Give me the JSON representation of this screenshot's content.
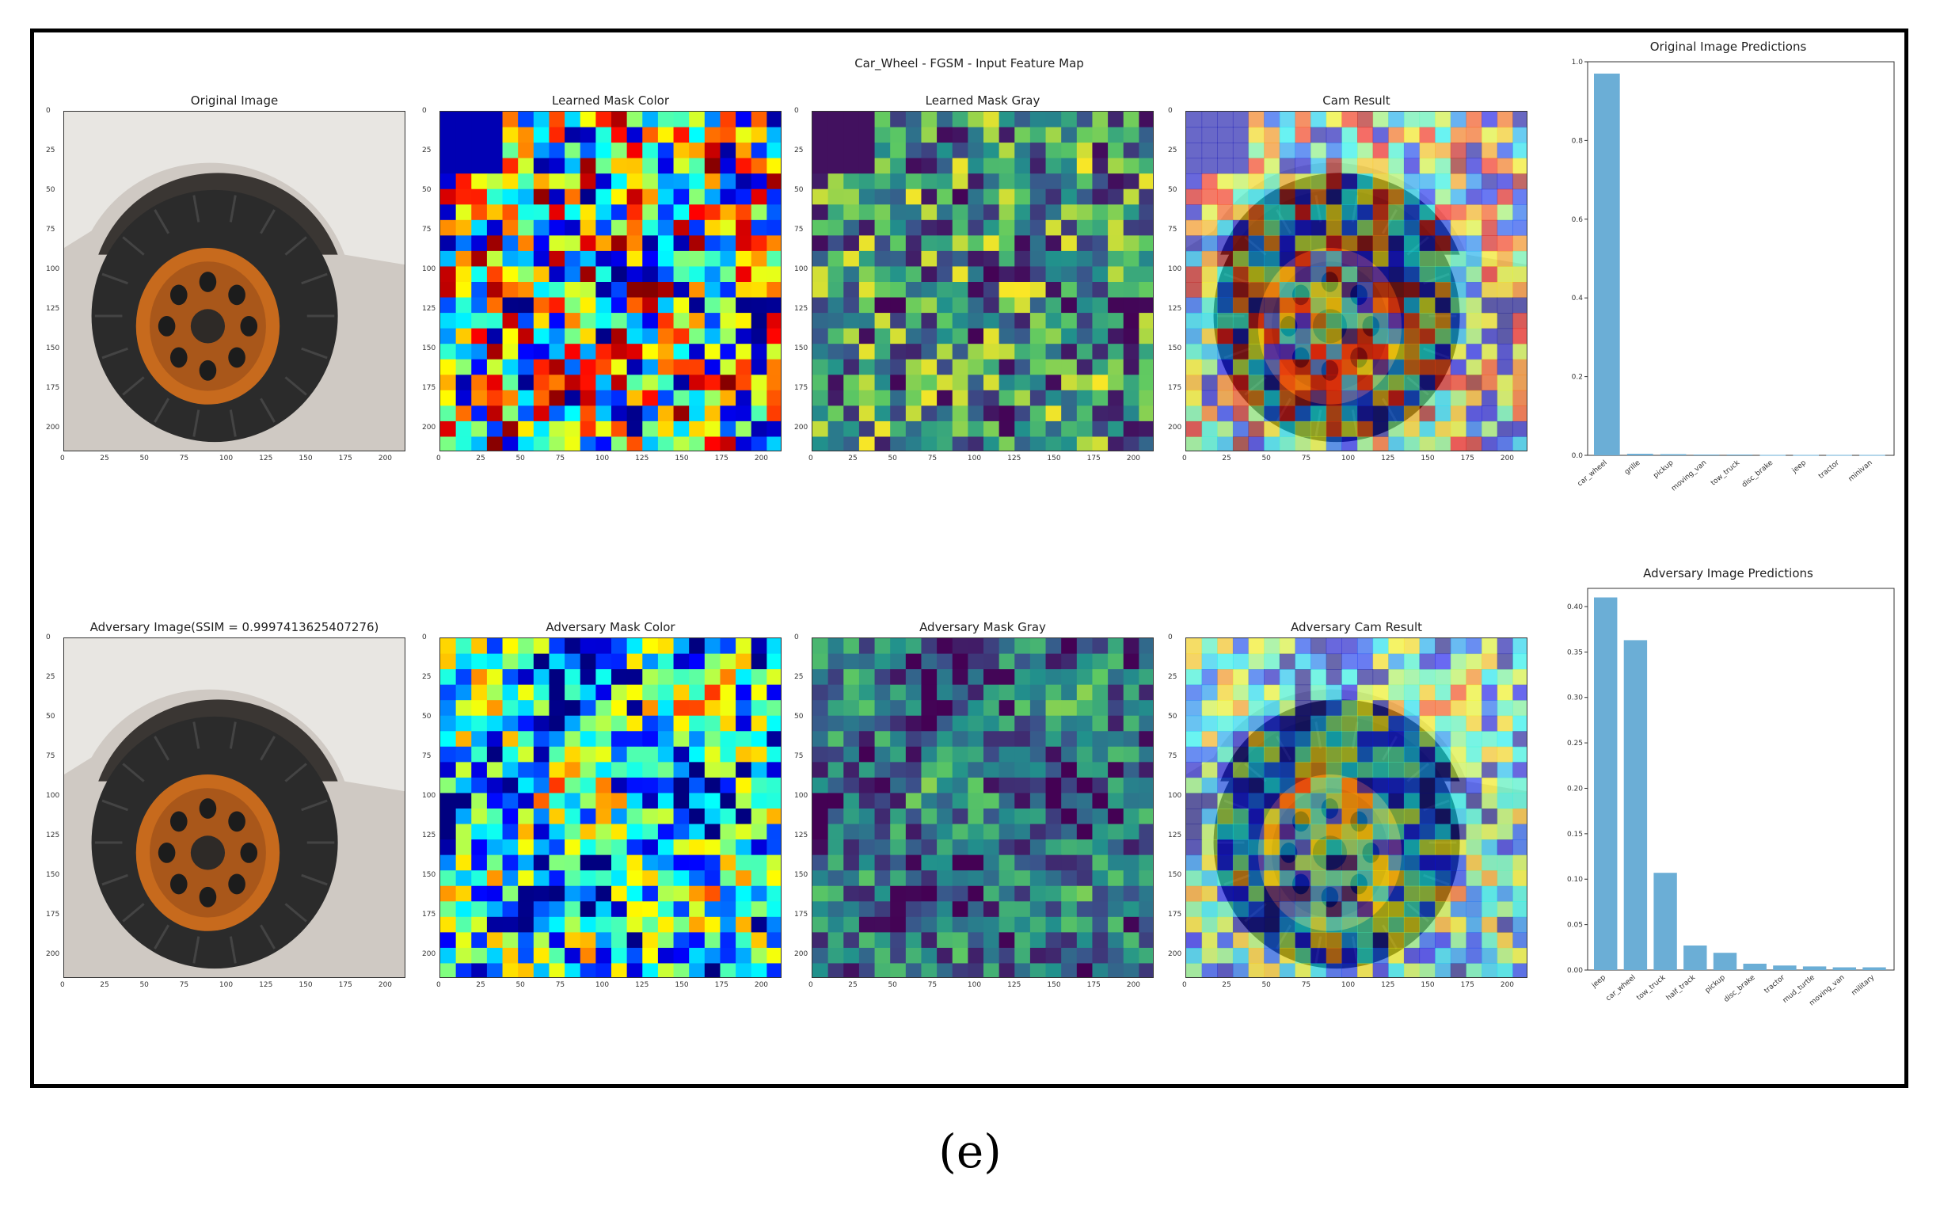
{
  "figure": {
    "suptitle": "Car_Wheel - FGSM - Input Feature Map",
    "caption": "(e)",
    "colors": {
      "bar": "#6baed6",
      "frame": "#000000",
      "tire": "#2b2b2b",
      "rim": "#c76a1d",
      "body": "#e8e6e2",
      "ground": "#cfc9c3"
    }
  },
  "rows": [
    {
      "panels": [
        {
          "title": "Original Image",
          "kind": "photo"
        },
        {
          "title": "Learned Mask Color",
          "kind": "jet",
          "seed": 11
        },
        {
          "title": "Learned Mask Gray",
          "kind": "viridis",
          "seed": 11
        },
        {
          "title": "Cam Result",
          "kind": "overlay",
          "seed": 11
        }
      ]
    },
    {
      "panels": [
        {
          "title": "Adversary Image(SSIM = 0.9997413625407276)",
          "kind": "photo"
        },
        {
          "title": "Adversary Mask Color",
          "kind": "jet",
          "seed": 29
        },
        {
          "title": "Adversary Mask Gray",
          "kind": "viridis",
          "seed": 29
        },
        {
          "title": "Adversary Cam Result",
          "kind": "overlay",
          "seed": 29
        }
      ]
    }
  ],
  "image_ticks": {
    "x": [
      "0",
      "25",
      "50",
      "75",
      "100",
      "125",
      "150",
      "175",
      "200"
    ],
    "y": [
      "0",
      "25",
      "50",
      "75",
      "100",
      "125",
      "150",
      "175",
      "200"
    ]
  },
  "chart_data": [
    {
      "type": "bar",
      "title": "Original Image Predictions",
      "categories": [
        "car_wheel",
        "grille",
        "pickup",
        "moving_van",
        "tow_truck",
        "disc_brake",
        "jeep",
        "tractor",
        "minivan"
      ],
      "values": [
        0.97,
        0.004,
        0.003,
        0.002,
        0.002,
        0.001,
        0.001,
        0.001,
        0.001
      ],
      "ylim": [
        0,
        1.0
      ],
      "yticks": [
        "0.0",
        "0.2",
        "0.4",
        "0.6",
        "0.8",
        "1.0"
      ],
      "xlabel": "",
      "ylabel": ""
    },
    {
      "type": "bar",
      "title": "Adversary Image Predictions",
      "categories": [
        "jeep",
        "car_wheel",
        "tow_truck",
        "half_track",
        "pickup",
        "disc_brake",
        "tractor",
        "mud_turtle",
        "moving_van",
        "military"
      ],
      "values": [
        0.41,
        0.363,
        0.107,
        0.027,
        0.019,
        0.007,
        0.005,
        0.004,
        0.003,
        0.003
      ],
      "ylim": [
        0,
        0.42
      ],
      "yticks": [
        "0.00",
        "0.05",
        "0.10",
        "0.15",
        "0.20",
        "0.25",
        "0.30",
        "0.35",
        "0.40"
      ],
      "xlabel": "",
      "ylabel": ""
    }
  ]
}
